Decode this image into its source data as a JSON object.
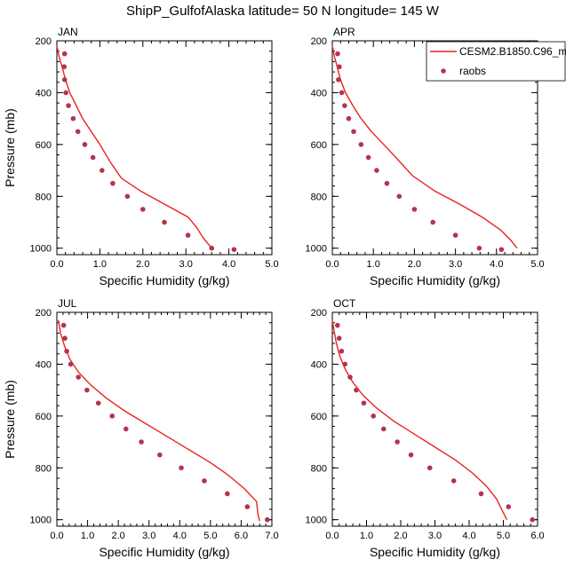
{
  "title": "ShipP_GulfofAlaska  latitude= 50 N longitude= 145 W",
  "legend": {
    "model_label": "CESM2.B1850.C96_m",
    "obs_label": "raobs",
    "model_color": "#e8231f",
    "obs_color": "#b5334f"
  },
  "chart_data": [
    {
      "type": "line",
      "panel": "JAN",
      "xlabel": "Specific Humidity (g/kg)",
      "ylabel": "Pressure (mb)",
      "xlim": [
        0,
        5
      ],
      "ylim": [
        200,
        1025
      ],
      "y_reversed": true,
      "x_ticks": [
        "0.0",
        "1.0",
        "2.0",
        "3.0",
        "4.0",
        "5.0"
      ],
      "y_ticks": [
        "200",
        "400",
        "600",
        "800",
        "1000"
      ],
      "series": [
        {
          "name": "CESM2.B1850.C96_m",
          "kind": "line",
          "x": [
            0.0,
            0.05,
            0.12,
            0.2,
            0.3,
            0.45,
            0.6,
            0.8,
            1.0,
            1.25,
            1.5,
            1.95,
            2.5,
            3.05,
            3.25,
            3.4,
            3.6
          ],
          "y": [
            220,
            260,
            300,
            350,
            400,
            450,
            500,
            550,
            600,
            670,
            730,
            780,
            830,
            880,
            920,
            960,
            1000
          ]
        },
        {
          "name": "raobs",
          "kind": "scatter",
          "x": [
            0.18,
            0.17,
            0.18,
            0.21,
            0.27,
            0.38,
            0.49,
            0.65,
            0.84,
            1.05,
            1.3,
            1.64,
            2.0,
            2.5,
            3.05,
            3.6,
            4.12
          ],
          "y": [
            250,
            300,
            350,
            400,
            450,
            500,
            550,
            600,
            650,
            700,
            750,
            800,
            850,
            900,
            950,
            1000,
            1005
          ]
        }
      ]
    },
    {
      "type": "line",
      "panel": "APR",
      "xlabel": "Specific Humidity (g/kg)",
      "ylabel": "",
      "xlim": [
        0,
        5
      ],
      "ylim": [
        200,
        1025
      ],
      "y_reversed": true,
      "x_ticks": [
        "0.0",
        "1.0",
        "2.0",
        "3.0",
        "4.0",
        "5.0"
      ],
      "y_ticks": [
        "200",
        "400",
        "600",
        "800",
        "1000"
      ],
      "series": [
        {
          "name": "CESM2.B1850.C96_m",
          "kind": "line",
          "x": [
            0.0,
            0.05,
            0.12,
            0.2,
            0.32,
            0.5,
            0.7,
            0.95,
            1.25,
            1.55,
            1.95,
            2.5,
            3.1,
            3.65,
            4.1,
            4.35,
            4.5
          ],
          "y": [
            220,
            260,
            300,
            350,
            400,
            450,
            500,
            550,
            600,
            650,
            720,
            780,
            830,
            880,
            930,
            970,
            1000
          ]
        },
        {
          "name": "raobs",
          "kind": "scatter",
          "x": [
            0.13,
            0.17,
            0.15,
            0.23,
            0.3,
            0.4,
            0.52,
            0.7,
            0.88,
            1.08,
            1.33,
            1.63,
            2.0,
            2.45,
            3.0,
            3.58,
            4.12
          ],
          "y": [
            250,
            300,
            350,
            400,
            450,
            500,
            550,
            600,
            650,
            700,
            750,
            800,
            850,
            900,
            950,
            1000,
            1005
          ]
        }
      ]
    },
    {
      "type": "line",
      "panel": "JUL",
      "xlabel": "Specific Humidity (g/kg)",
      "ylabel": "Pressure (mb)",
      "xlim": [
        0,
        7
      ],
      "ylim": [
        200,
        1025
      ],
      "y_reversed": true,
      "x_ticks": [
        "0.0",
        "1.0",
        "2.0",
        "3.0",
        "4.0",
        "5.0",
        "6.0",
        "7.0"
      ],
      "y_ticks": [
        "200",
        "400",
        "600",
        "800",
        "1000"
      ],
      "series": [
        {
          "name": "CESM2.B1850.C96_m",
          "kind": "line",
          "x": [
            0.05,
            0.12,
            0.25,
            0.42,
            0.7,
            1.1,
            1.6,
            2.2,
            2.9,
            3.6,
            4.3,
            5.0,
            5.6,
            6.1,
            6.5,
            6.55,
            6.6
          ],
          "y": [
            230,
            280,
            330,
            380,
            430,
            480,
            530,
            580,
            630,
            680,
            730,
            780,
            830,
            880,
            930,
            980,
            1005
          ]
        },
        {
          "name": "raobs",
          "kind": "scatter",
          "x": [
            0.22,
            0.26,
            0.32,
            0.45,
            0.7,
            0.98,
            1.35,
            1.8,
            2.25,
            2.75,
            3.35,
            4.05,
            4.8,
            5.55,
            6.2,
            6.85
          ],
          "y": [
            250,
            300,
            350,
            400,
            450,
            500,
            550,
            600,
            650,
            700,
            750,
            800,
            850,
            900,
            950,
            1000
          ]
        }
      ]
    },
    {
      "type": "line",
      "panel": "OCT",
      "xlabel": "Specific Humidity (g/kg)",
      "ylabel": "",
      "xlim": [
        0,
        6
      ],
      "ylim": [
        200,
        1025
      ],
      "y_reversed": true,
      "x_ticks": [
        "0.0",
        "1.0",
        "2.0",
        "3.0",
        "4.0",
        "5.0",
        "6.0"
      ],
      "y_ticks": [
        "200",
        "400",
        "600",
        "800",
        "1000"
      ],
      "series": [
        {
          "name": "CESM2.B1850.C96_m",
          "kind": "line",
          "x": [
            0.0,
            0.05,
            0.12,
            0.22,
            0.38,
            0.6,
            0.9,
            1.3,
            1.8,
            2.4,
            3.0,
            3.6,
            4.1,
            4.5,
            4.8,
            4.95,
            5.1
          ],
          "y": [
            230,
            270,
            320,
            370,
            420,
            470,
            520,
            570,
            620,
            670,
            720,
            770,
            820,
            870,
            920,
            960,
            1000
          ]
        },
        {
          "name": "raobs",
          "kind": "scatter",
          "x": [
            0.15,
            0.2,
            0.27,
            0.37,
            0.52,
            0.7,
            0.92,
            1.2,
            1.5,
            1.9,
            2.3,
            2.85,
            3.55,
            4.35,
            5.15,
            5.85
          ],
          "y": [
            250,
            300,
            350,
            400,
            450,
            500,
            550,
            600,
            650,
            700,
            750,
            800,
            850,
            900,
            950,
            1000
          ]
        }
      ]
    }
  ]
}
